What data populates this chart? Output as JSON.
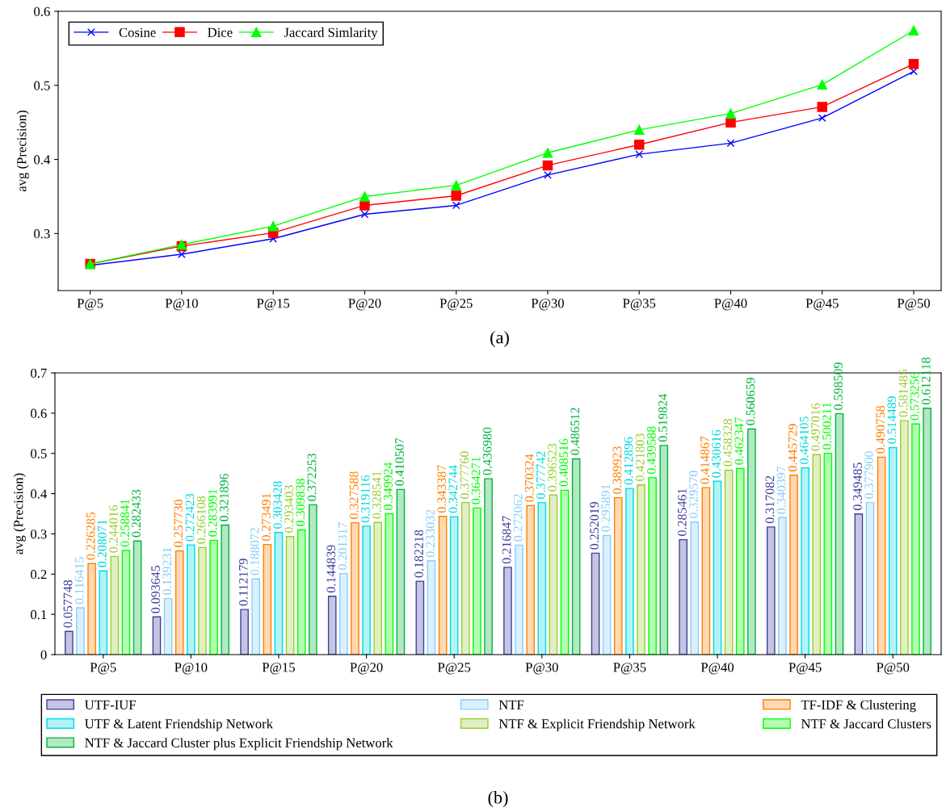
{
  "chart_data": [
    {
      "type": "line",
      "ylabel": "avg (Precision)",
      "categories": [
        "P@5",
        "P@10",
        "P@15",
        "P@20",
        "P@25",
        "P@30",
        "P@35",
        "P@40",
        "P@45",
        "P@50"
      ],
      "series": [
        {
          "name": "Cosine",
          "color": "#0000ff",
          "marker": "cross",
          "values": [
            0.257,
            0.272,
            0.293,
            0.326,
            0.338,
            0.379,
            0.407,
            0.422,
            0.456,
            0.519
          ]
        },
        {
          "name": "Dice",
          "color": "#ff0000",
          "marker": "square",
          "values": [
            0.259,
            0.283,
            0.301,
            0.338,
            0.351,
            0.392,
            0.42,
            0.45,
            0.471,
            0.529
          ]
        },
        {
          "name": "Jaccard Simlarity",
          "color": "#00ff00",
          "marker": "triangle",
          "values": [
            0.259,
            0.285,
            0.31,
            0.35,
            0.365,
            0.409,
            0.44,
            0.462,
            0.501,
            0.574
          ]
        }
      ],
      "ylim": [
        0.223,
        0.6
      ],
      "yticks": [
        0.3,
        0.4,
        0.5,
        0.6
      ],
      "grid": false,
      "legend": "top left",
      "line_style": "solid",
      "annotations": [
        "(a)"
      ]
    },
    {
      "type": "bar",
      "ylabel": "avg (Precision)",
      "categories": [
        "P@5",
        "P@10",
        "P@15",
        "P@20",
        "P@25",
        "P@30",
        "P@35",
        "P@40",
        "P@45",
        "P@50"
      ],
      "series": [
        {
          "name": "UTF-IUF",
          "color": "#3f3f9f",
          "values": [
            0.057748,
            0.093645,
            0.112179,
            0.144839,
            0.182218,
            0.216847,
            0.252019,
            0.285461,
            0.317082,
            0.349485
          ],
          "value_labels": [
            "0.057748",
            "0.093645",
            "0.112179",
            "0.144839",
            "0.182218",
            "0.216847",
            "0.252019",
            "0.285461",
            "0.317082",
            "0.349485"
          ]
        },
        {
          "name": "NTF",
          "color": "#87cefa",
          "values": [
            0.116415,
            0.139231,
            0.188072,
            0.201317,
            0.233032,
            0.272062,
            0.295891,
            0.32957,
            0.340397,
            0.3779
          ],
          "value_labels": [
            "0.116415",
            "0.139231",
            "0.188072",
            "0.201317",
            "0.233032",
            "0.272062",
            "0.295891",
            "0.329570",
            "0.340397",
            "0.377900"
          ]
        },
        {
          "name": "TF-IDF & Clustering",
          "color": "#ff8000",
          "values": [
            0.226285,
            0.25773,
            0.273491,
            0.327588,
            0.343387,
            0.370324,
            0.389923,
            0.414867,
            0.445729,
            0.490758
          ],
          "value_labels": [
            "0.226285",
            "0.257730",
            "0.273491",
            "0.327588",
            "0.343387",
            "0.370324",
            "0.389923",
            "0.414867",
            "0.445729",
            "0.490758"
          ]
        },
        {
          "name": "UTF & Latent Friendship Network",
          "color": "#00d9e0",
          "values": [
            0.208071,
            0.272423,
            0.303428,
            0.319116,
            0.342744,
            0.377742,
            0.412896,
            0.430616,
            0.464105,
            0.514489
          ],
          "value_labels": [
            "0.208071",
            "0.272423",
            "0.303428",
            "0.319116",
            "0.342744",
            "0.377742",
            "0.412896",
            "0.430616",
            "0.464105",
            "0.514489"
          ]
        },
        {
          "name": "NTF & Explicit Friendship Network",
          "color": "#9acd32",
          "values": [
            0.244016,
            0.266108,
            0.293403,
            0.328541,
            0.37776,
            0.396523,
            0.421803,
            0.458328,
            0.497016,
            0.581485
          ],
          "value_labels": [
            "0.244016",
            "0.266108",
            "0.293403",
            "0.328541",
            "0.377760",
            "0.396523",
            "0.421803",
            "0.458328",
            "0.497016",
            "0.581485"
          ]
        },
        {
          "name": "NTF & Jaccard Clusters",
          "color": "#00ff00",
          "values": [
            0.258841,
            0.283991,
            0.309838,
            0.349924,
            0.364271,
            0.408516,
            0.439588,
            0.462347,
            0.500211,
            0.573256
          ],
          "value_labels": [
            "0.258841",
            "0.283991",
            "0.309838",
            "0.349924",
            "0.364271",
            "0.408516",
            "0.439588",
            "0.462347",
            "0.500211",
            "0.573256"
          ]
        },
        {
          "name": "NTF & Jaccard Cluster plus Explicit Friendship Network",
          "color": "#00b33c",
          "values": [
            0.282433,
            0.321896,
            0.372253,
            0.410507,
            0.43698,
            0.486512,
            0.519824,
            0.560659,
            0.598509,
            0.612118
          ],
          "value_labels": [
            "0.282433",
            "0.321896",
            "0.372253",
            "0.410507",
            "0.436980",
            "0.486512",
            "0.519824",
            "0.560659",
            "0.598509",
            "0.612118"
          ]
        }
      ],
      "ylim": [
        0,
        0.7
      ],
      "yticks": [
        0,
        0.1,
        0.2,
        0.3,
        0.4,
        0.5,
        0.6,
        0.7
      ],
      "grid": false,
      "legend": "bottom",
      "annotations": [
        "(b)"
      ]
    }
  ]
}
